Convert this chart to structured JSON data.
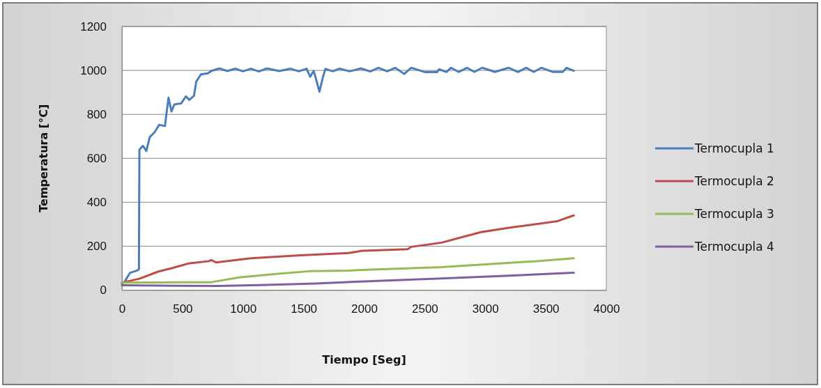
{
  "chart_data": {
    "type": "line",
    "xlabel": "Tiempo [Seg]",
    "ylabel": "Temperatura [°C]",
    "xlim": [
      0,
      4000
    ],
    "ylim": [
      0,
      1200
    ],
    "xticks": [
      0,
      500,
      1000,
      1500,
      2000,
      2500,
      3000,
      3500,
      4000
    ],
    "yticks": [
      0,
      200,
      400,
      600,
      800,
      1000,
      1200
    ],
    "grid": "y",
    "legend": "right",
    "marker": "none",
    "line_style": "solid",
    "series": [
      {
        "name": "Termocupla 1",
        "color": "#4a7ebb",
        "x": [
          0,
          19,
          67,
          125,
          140,
          144,
          173,
          201,
          230,
          269,
          307,
          355,
          384,
          409,
          432,
          489,
          528,
          556,
          595,
          614,
          652,
          710,
          738,
          806,
          870,
          938,
          1000,
          1065,
          1130,
          1197,
          1300,
          1393,
          1460,
          1525,
          1554,
          1583,
          1600,
          1631,
          1660,
          1680,
          1740,
          1795,
          1880,
          1974,
          2050,
          2118,
          2190,
          2256,
          2331,
          2388,
          2504,
          2601,
          2619,
          2680,
          2717,
          2780,
          2849,
          2910,
          2975,
          3080,
          3194,
          3270,
          3338,
          3400,
          3465,
          3560,
          3640,
          3672,
          3731
        ],
        "values": [
          30,
          36,
          79,
          89,
          95,
          639,
          657,
          633,
          697,
          718,
          752,
          747,
          876,
          813,
          845,
          850,
          882,
          866,
          885,
          950,
          982,
          987,
          998,
          1009,
          997,
          1008,
          996,
          1008,
          995,
          1009,
          997,
          1008,
          996,
          1008,
          971,
          998,
          966,
          903,
          971,
          1007,
          996,
          1008,
          996,
          1009,
          995,
          1012,
          996,
          1012,
          984,
          1012,
          992,
          992,
          1005,
          993,
          1012,
          993,
          1012,
          993,
          1012,
          993,
          1012,
          993,
          1012,
          993,
          1012,
          993,
          993,
          1012,
          998
        ]
      },
      {
        "name": "Termocupla 2",
        "color": "#be4b48",
        "x": [
          0,
          144,
          297,
          412,
          547,
          719,
          738,
          777,
          1065,
          1448,
          1870,
          1986,
          2360,
          2388,
          2638,
          2964,
          3213,
          3597,
          3731
        ],
        "values": [
          34,
          52,
          84,
          100,
          121,
          132,
          137,
          126,
          145,
          158,
          169,
          179,
          186,
          197,
          216,
          264,
          285,
          314,
          340
        ]
      },
      {
        "name": "Termocupla 3",
        "color": "#98b954",
        "x": [
          0,
          300,
          738,
          777,
          969,
          1257,
          1544,
          1870,
          1986,
          2638,
          3022,
          3405,
          3731
        ],
        "values": [
          34,
          35,
          36,
          40,
          58,
          73,
          86,
          89,
          92,
          105,
          118,
          131,
          145
        ]
      },
      {
        "name": "Termocupla 4",
        "color": "#7d60a0",
        "x": [
          0,
          500,
          800,
          1200,
          1600,
          2000,
          2600,
          3200,
          3731
        ],
        "values": [
          22,
          20,
          19,
          24,
          30,
          40,
          52,
          66,
          79
        ]
      }
    ]
  }
}
